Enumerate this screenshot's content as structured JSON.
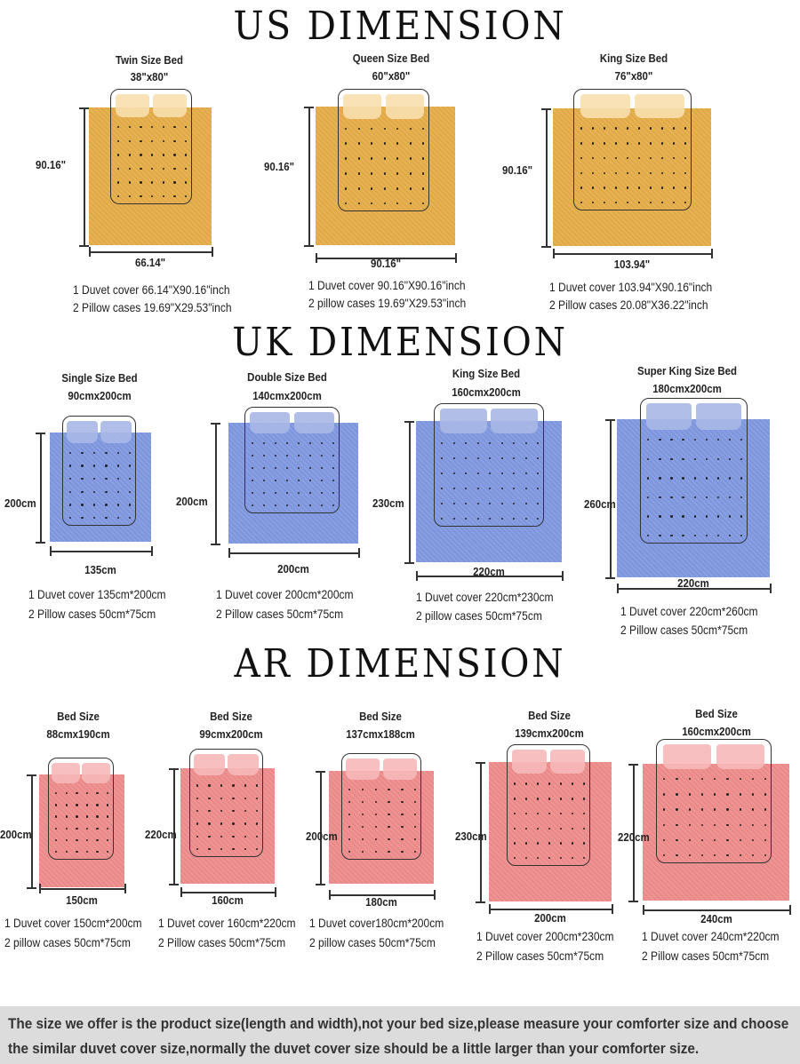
{
  "sections": [
    {
      "heading": "US DIMENSION",
      "color": "#e6ad48",
      "pillow_color": "#f7dfae",
      "beds": [
        {
          "title": "Twin Size Bed",
          "size": "38\"x80\"",
          "height": "90.16\"",
          "width": "66.14\"",
          "line1": "1 Duvet cover 66.14\"X90.16\"inch",
          "line2": "2 Pillow cases 19.69\"X29.53\"inch"
        },
        {
          "title": "Queen Size Bed",
          "size": "60\"x80\"",
          "height": "90.16\"",
          "width": "90.16\"",
          "line1": "1 Duvet cover 90.16\"X90.16\"inch",
          "line2": "2 pillow cases 19.69\"X29.53\"inch"
        },
        {
          "title": "King Size Bed",
          "size": "76\"x80\"",
          "height": "90.16\"",
          "width": "103.94\"",
          "line1": "1 Duvet cover 103.94\"X90.16\"inch",
          "line2": "2 Pillow cases 20.08\"X36.22\"inch"
        }
      ]
    },
    {
      "heading": "UK DIMENSION",
      "color": "#8199e2",
      "pillow_color": "#a9b8e6",
      "beds": [
        {
          "title": "Single Size Bed",
          "size": "90cmx200cm",
          "height": "200cm",
          "width": "135cm",
          "line1": "1 Duvet cover 135cm*200cm",
          "line2": "2 Pillow cases 50cm*75cm"
        },
        {
          "title": "Double Size Bed",
          "size": "140cmx200cm",
          "height": "200cm",
          "width": "200cm",
          "line1": "1 Duvet cover 200cm*200cm",
          "line2": "2 Pillow cases 50cm*75cm"
        },
        {
          "title": "King Size Bed",
          "size": "160cmx200cm",
          "height": "230cm",
          "width": "220cm",
          "line1": "1 Duvet cover 220cm*230cm",
          "line2": "2 pillow cases 50cm*75cm"
        },
        {
          "title": "Super King Size Bed",
          "size": "180cmx200cm",
          "height": "260cm",
          "width": "220cm",
          "line1": "1 Duvet cover 220cm*260cm",
          "line2": "2 Pillow cases 50cm*75cm"
        }
      ]
    },
    {
      "heading": "AR DIMENSION",
      "color": "#ef8c8c",
      "pillow_color": "#f6b8b8",
      "beds": [
        {
          "title": "Bed Size",
          "size": "88cmx190cm",
          "height": "200cm",
          "width": "150cm",
          "line1": "1 Duvet cover 150cm*200cm",
          "line2": "2 pillow cases 50cm*75cm"
        },
        {
          "title": "Bed Size",
          "size": "99cmx200cm",
          "height": "220cm",
          "width": "160cm",
          "line1": "1 Duvet cover 160cm*220cm",
          "line2": "2 Pillow cases 50cm*75cm"
        },
        {
          "title": "Bed Size",
          "size": "137cmx188cm",
          "height": "200cm",
          "width": "180cm",
          "line1": "1 Duvet cover180cm*200cm",
          "line2": "2 pillow cases 50cm*75cm"
        },
        {
          "title": "Bed Size",
          "size": "139cmx200cm",
          "height": "230cm",
          "width": "200cm",
          "line1": "1 Duvet cover 200cm*230cm",
          "line2": "2 Pillow cases 50cm*75cm"
        },
        {
          "title": "Bed Size",
          "size": "160cmx200cm",
          "height": "220cm",
          "width": "240cm",
          "line1": "1 Duvet cover 240cm*220cm",
          "line2": "2 Pillow cases 50cm*75cm"
        }
      ]
    }
  ],
  "footer": {
    "line1": "The size we offer is the product size(length and width),not your bed size,please measure your comforter size and choose",
    "line2": "the similar duvet cover size,normally the duvet cover size should be a little larger than your comforter size."
  }
}
